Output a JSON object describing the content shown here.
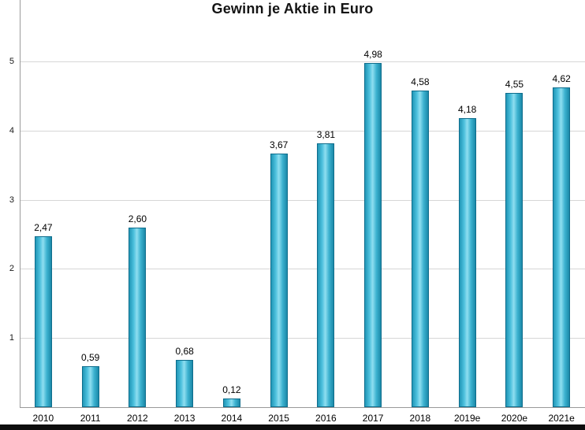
{
  "chart_data": {
    "type": "bar",
    "title": "Gewinn je Aktie in Euro",
    "xlabel": "",
    "ylabel": "",
    "categories": [
      "2010",
      "2011",
      "2012",
      "2013",
      "2014",
      "2015",
      "2016",
      "2017",
      "2018",
      "2019e",
      "2020e",
      "2021e"
    ],
    "values": [
      2.47,
      0.59,
      2.6,
      0.68,
      0.12,
      3.67,
      3.81,
      4.98,
      4.58,
      4.18,
      4.55,
      4.62
    ],
    "value_labels": [
      "2,47",
      "0,59",
      "2,60",
      "0,68",
      "0,12",
      "3,67",
      "3,81",
      "4,98",
      "4,58",
      "4,18",
      "4,55",
      "4,62"
    ],
    "ylim": [
      0,
      5.9
    ],
    "yticks": [
      1,
      2,
      3,
      4,
      5
    ],
    "grid": true,
    "legend": "none",
    "bar_fill_color": "#3CB2D0",
    "bar_border_color": "#0F6D8C",
    "gridline_color": "#D6D6D6",
    "axis_color": "#9A9A9A"
  }
}
